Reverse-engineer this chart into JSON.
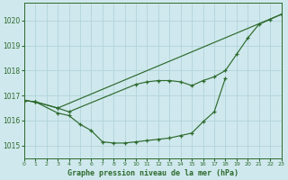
{
  "title": "Graphe pression niveau de la mer (hPa)",
  "background_color": "#cfe8ed",
  "grid_color": "#b0d4da",
  "line_color": "#2d6a2d",
  "xlim": [
    0,
    23
  ],
  "ylim": [
    1014.5,
    1020.7
  ],
  "yticks": [
    1015,
    1016,
    1017,
    1018,
    1019,
    1020
  ],
  "xticks": [
    0,
    1,
    2,
    3,
    4,
    5,
    6,
    7,
    8,
    9,
    10,
    11,
    12,
    13,
    14,
    15,
    16,
    17,
    18,
    19,
    20,
    21,
    22,
    23
  ],
  "line_straight": {
    "x": [
      0,
      1,
      3,
      23
    ],
    "y": [
      1016.8,
      1016.75,
      1016.5,
      1020.25
    ]
  },
  "line_middle": {
    "x": [
      0,
      1,
      3,
      4,
      10,
      11,
      12,
      13,
      14,
      15,
      16,
      17,
      18,
      19,
      20,
      21,
      22,
      23
    ],
    "y": [
      1016.8,
      1016.75,
      1016.5,
      1016.35,
      1017.45,
      1017.55,
      1017.6,
      1017.6,
      1017.55,
      1017.4,
      1017.6,
      1017.75,
      1018.0,
      1018.65,
      1019.3,
      1019.85,
      1020.05,
      1020.25
    ]
  },
  "line_bottom": {
    "x": [
      0,
      1,
      3,
      4,
      5,
      6,
      7,
      8,
      9,
      10,
      11,
      12,
      13,
      14,
      15,
      16,
      17,
      18
    ],
    "y": [
      1016.8,
      1016.75,
      1016.3,
      1016.2,
      1015.85,
      1015.6,
      1015.15,
      1015.1,
      1015.1,
      1015.15,
      1015.2,
      1015.25,
      1015.3,
      1015.4,
      1015.5,
      1015.95,
      1016.35,
      1017.7
    ]
  }
}
